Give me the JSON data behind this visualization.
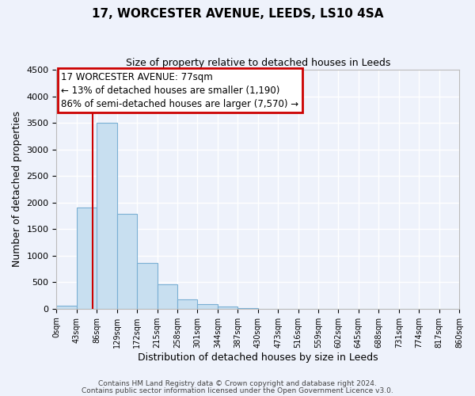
{
  "title": "17, WORCESTER AVENUE, LEEDS, LS10 4SA",
  "subtitle": "Size of property relative to detached houses in Leeds",
  "xlabel": "Distribution of detached houses by size in Leeds",
  "ylabel": "Number of detached properties",
  "bar_edges": [
    0,
    43,
    86,
    129,
    172,
    215,
    258,
    301,
    344,
    387,
    430,
    473,
    516,
    559,
    602,
    645,
    688,
    731,
    774,
    817,
    860
  ],
  "bar_heights": [
    50,
    1900,
    3500,
    1780,
    860,
    460,
    175,
    80,
    40,
    10,
    5,
    0,
    0,
    0,
    0,
    0,
    0,
    0,
    0,
    0
  ],
  "bar_color": "#c8dff0",
  "bar_edge_color": "#7aafd4",
  "marker_x": 77,
  "marker_color": "#cc0000",
  "ylim": [
    0,
    4500
  ],
  "ann_line1": "17 WORCESTER AVENUE: 77sqm",
  "ann_line2": "← 13% of detached houses are smaller (1,190)",
  "ann_line3": "86% of semi-detached houses are larger (7,570) →",
  "ann_box_color": "#cc0000",
  "footnote1": "Contains HM Land Registry data © Crown copyright and database right 2024.",
  "footnote2": "Contains public sector information licensed under the Open Government Licence v3.0.",
  "tick_labels": [
    "0sqm",
    "43sqm",
    "86sqm",
    "129sqm",
    "172sqm",
    "215sqm",
    "258sqm",
    "301sqm",
    "344sqm",
    "387sqm",
    "430sqm",
    "473sqm",
    "516sqm",
    "559sqm",
    "602sqm",
    "645sqm",
    "688sqm",
    "731sqm",
    "774sqm",
    "817sqm",
    "860sqm"
  ],
  "background_color": "#eef2fb",
  "grid_color": "#ffffff",
  "xlim": [
    0,
    860
  ]
}
